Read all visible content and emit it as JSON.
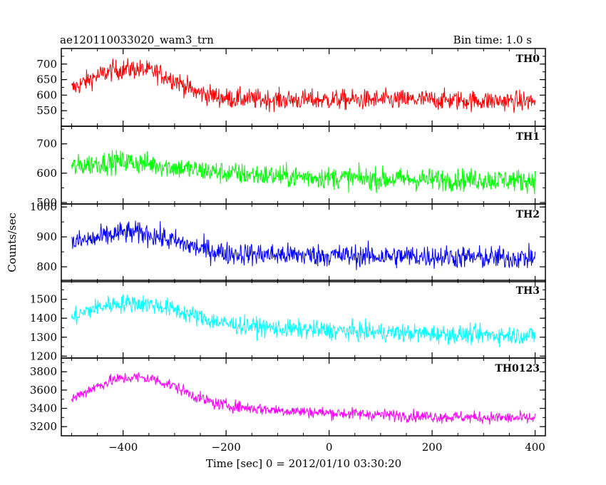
{
  "chart_data": {
    "type": "line",
    "title": "ae120110033020_wam3_trn",
    "subtitle": "Bin time: 1.0 s",
    "xlabel": "Time [sec] 0 = 2012/01/10 03:30:20",
    "ylabel": "Counts/sec",
    "xlim": [
      -520,
      420
    ],
    "xticks": [
      -400,
      -200,
      0,
      200,
      400
    ],
    "panels": [
      {
        "name": "TH0",
        "color": "#ff0000",
        "ylim": [
          500,
          750
        ],
        "yticks": [
          550,
          600,
          650,
          700
        ],
        "profile": [
          [
            -500,
            620
          ],
          [
            -460,
            655
          ],
          [
            -420,
            680
          ],
          [
            -380,
            685
          ],
          [
            -340,
            675
          ],
          [
            -300,
            650
          ],
          [
            -260,
            610
          ],
          [
            -200,
            590
          ],
          [
            -100,
            585
          ],
          [
            0,
            585
          ],
          [
            100,
            585
          ],
          [
            200,
            585
          ],
          [
            300,
            582
          ],
          [
            400,
            580
          ]
        ],
        "noise": 30
      },
      {
        "name": "TH1",
        "color": "#00ff00",
        "ylim": [
          495,
          760
        ],
        "yticks": [
          500,
          600,
          700
        ],
        "profile": [
          [
            -500,
            620
          ],
          [
            -450,
            635
          ],
          [
            -400,
            640
          ],
          [
            -340,
            630
          ],
          [
            -280,
            615
          ],
          [
            -200,
            600
          ],
          [
            -100,
            590
          ],
          [
            0,
            585
          ],
          [
            100,
            580
          ],
          [
            200,
            578
          ],
          [
            300,
            578
          ],
          [
            400,
            575
          ]
        ],
        "noise": 35
      },
      {
        "name": "TH2",
        "color": "#0000ff",
        "ylim": [
          750,
          1010
        ],
        "yticks": [
          800,
          900,
          1000
        ],
        "profile": [
          [
            -500,
            880
          ],
          [
            -450,
            895
          ],
          [
            -400,
            915
          ],
          [
            -350,
            910
          ],
          [
            -300,
            885
          ],
          [
            -250,
            860
          ],
          [
            -200,
            845
          ],
          [
            -100,
            840
          ],
          [
            0,
            838
          ],
          [
            100,
            835
          ],
          [
            200,
            835
          ],
          [
            300,
            830
          ],
          [
            400,
            830
          ]
        ],
        "noise": 35
      },
      {
        "name": "TH3",
        "color": "#00ffff",
        "ylim": [
          1190,
          1600
        ],
        "yticks": [
          1200,
          1300,
          1400,
          1500
        ],
        "profile": [
          [
            -500,
            1400
          ],
          [
            -460,
            1450
          ],
          [
            -420,
            1475
          ],
          [
            -380,
            1480
          ],
          [
            -340,
            1470
          ],
          [
            -300,
            1445
          ],
          [
            -260,
            1410
          ],
          [
            -200,
            1370
          ],
          [
            -100,
            1345
          ],
          [
            0,
            1335
          ],
          [
            100,
            1325
          ],
          [
            200,
            1318
          ],
          [
            300,
            1312
          ],
          [
            400,
            1310
          ]
        ],
        "noise": 45
      },
      {
        "name": "TH0123",
        "color": "#ff00ff",
        "ylim": [
          3100,
          3950
        ],
        "yticks": [
          3200,
          3400,
          3600,
          3800
        ],
        "profile": [
          [
            -500,
            3500
          ],
          [
            -460,
            3620
          ],
          [
            -420,
            3710
          ],
          [
            -380,
            3740
          ],
          [
            -340,
            3720
          ],
          [
            -300,
            3640
          ],
          [
            -260,
            3530
          ],
          [
            -220,
            3450
          ],
          [
            -150,
            3400
          ],
          [
            -100,
            3380
          ],
          [
            0,
            3350
          ],
          [
            100,
            3330
          ],
          [
            200,
            3310
          ],
          [
            300,
            3300
          ],
          [
            400,
            3290
          ]
        ],
        "noise": 60
      }
    ],
    "grid": false,
    "legend": "none"
  }
}
